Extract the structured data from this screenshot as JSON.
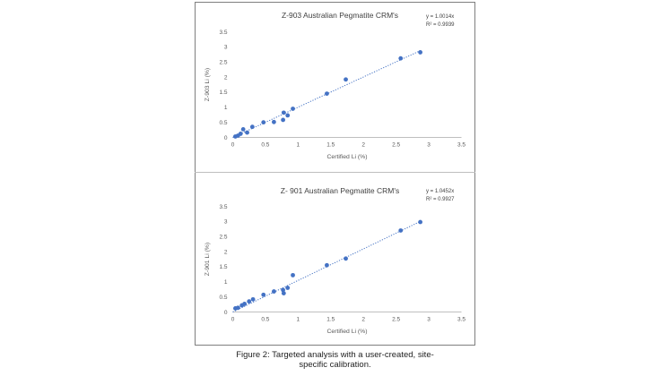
{
  "caption": {
    "line1": "Figure 2: Targeted analysis with a user-created, site-",
    "line2": "specific calibration."
  },
  "colors": {
    "points": "#4472c4",
    "trendline": "#4472c4",
    "axis": "#bfbfbf",
    "text": "#595959"
  },
  "chart_data": [
    {
      "type": "scatter",
      "title": "Z-903 Australian Pegmatite CRM's",
      "xlabel": "Certified Li (%)",
      "ylabel": "Z-903 Li (%)",
      "xlim": [
        0,
        3.5
      ],
      "ylim": [
        0,
        3.5
      ],
      "xticks": [
        "0",
        "0.5",
        "1",
        "1.5",
        "2",
        "2.5",
        "3",
        "3.5"
      ],
      "yticks": [
        "0",
        "0.5",
        "1",
        "1.5",
        "2",
        "2.5",
        "3",
        "3.5"
      ],
      "grid": false,
      "trendline": {
        "type": "linear",
        "slope": 1.0014,
        "style": "dotted"
      },
      "equation": "y = 1.0014x",
      "r2": "R² = 0.9939",
      "points": [
        {
          "x": 0.04,
          "y": 0.03
        },
        {
          "x": 0.08,
          "y": 0.06
        },
        {
          "x": 0.12,
          "y": 0.12
        },
        {
          "x": 0.16,
          "y": 0.27
        },
        {
          "x": 0.22,
          "y": 0.16
        },
        {
          "x": 0.3,
          "y": 0.35
        },
        {
          "x": 0.47,
          "y": 0.5
        },
        {
          "x": 0.63,
          "y": 0.51
        },
        {
          "x": 0.77,
          "y": 0.58
        },
        {
          "x": 0.78,
          "y": 0.82
        },
        {
          "x": 0.84,
          "y": 0.73
        },
        {
          "x": 0.92,
          "y": 0.95
        },
        {
          "x": 1.44,
          "y": 1.45
        },
        {
          "x": 1.73,
          "y": 1.92
        },
        {
          "x": 2.57,
          "y": 2.62
        },
        {
          "x": 2.87,
          "y": 2.82
        }
      ]
    },
    {
      "type": "scatter",
      "title": "Z- 901 Australian Pegmatite CRM's",
      "xlabel": "Certified Li (%)",
      "ylabel": "Z-901 Li (%)",
      "xlim": [
        0,
        3.5
      ],
      "ylim": [
        0,
        3.5
      ],
      "xticks": [
        "0",
        "0.5",
        "1",
        "1.5",
        "2",
        "2.5",
        "3",
        "3.5"
      ],
      "yticks": [
        "0",
        "0.5",
        "1",
        "1.5",
        "2",
        "2.5",
        "3",
        "3.5"
      ],
      "grid": false,
      "trendline": {
        "type": "linear",
        "slope": 1.0452,
        "style": "dotted"
      },
      "equation": "y = 1.0452x",
      "r2": "R² = 0.9927",
      "points": [
        {
          "x": 0.04,
          "y": 0.12
        },
        {
          "x": 0.08,
          "y": 0.14
        },
        {
          "x": 0.14,
          "y": 0.22
        },
        {
          "x": 0.18,
          "y": 0.27
        },
        {
          "x": 0.25,
          "y": 0.35
        },
        {
          "x": 0.31,
          "y": 0.42
        },
        {
          "x": 0.47,
          "y": 0.57
        },
        {
          "x": 0.63,
          "y": 0.68
        },
        {
          "x": 0.77,
          "y": 0.73
        },
        {
          "x": 0.78,
          "y": 0.62
        },
        {
          "x": 0.84,
          "y": 0.8
        },
        {
          "x": 0.92,
          "y": 1.22
        },
        {
          "x": 1.44,
          "y": 1.55
        },
        {
          "x": 1.73,
          "y": 1.77
        },
        {
          "x": 2.57,
          "y": 2.7
        },
        {
          "x": 2.87,
          "y": 2.98
        }
      ]
    }
  ]
}
